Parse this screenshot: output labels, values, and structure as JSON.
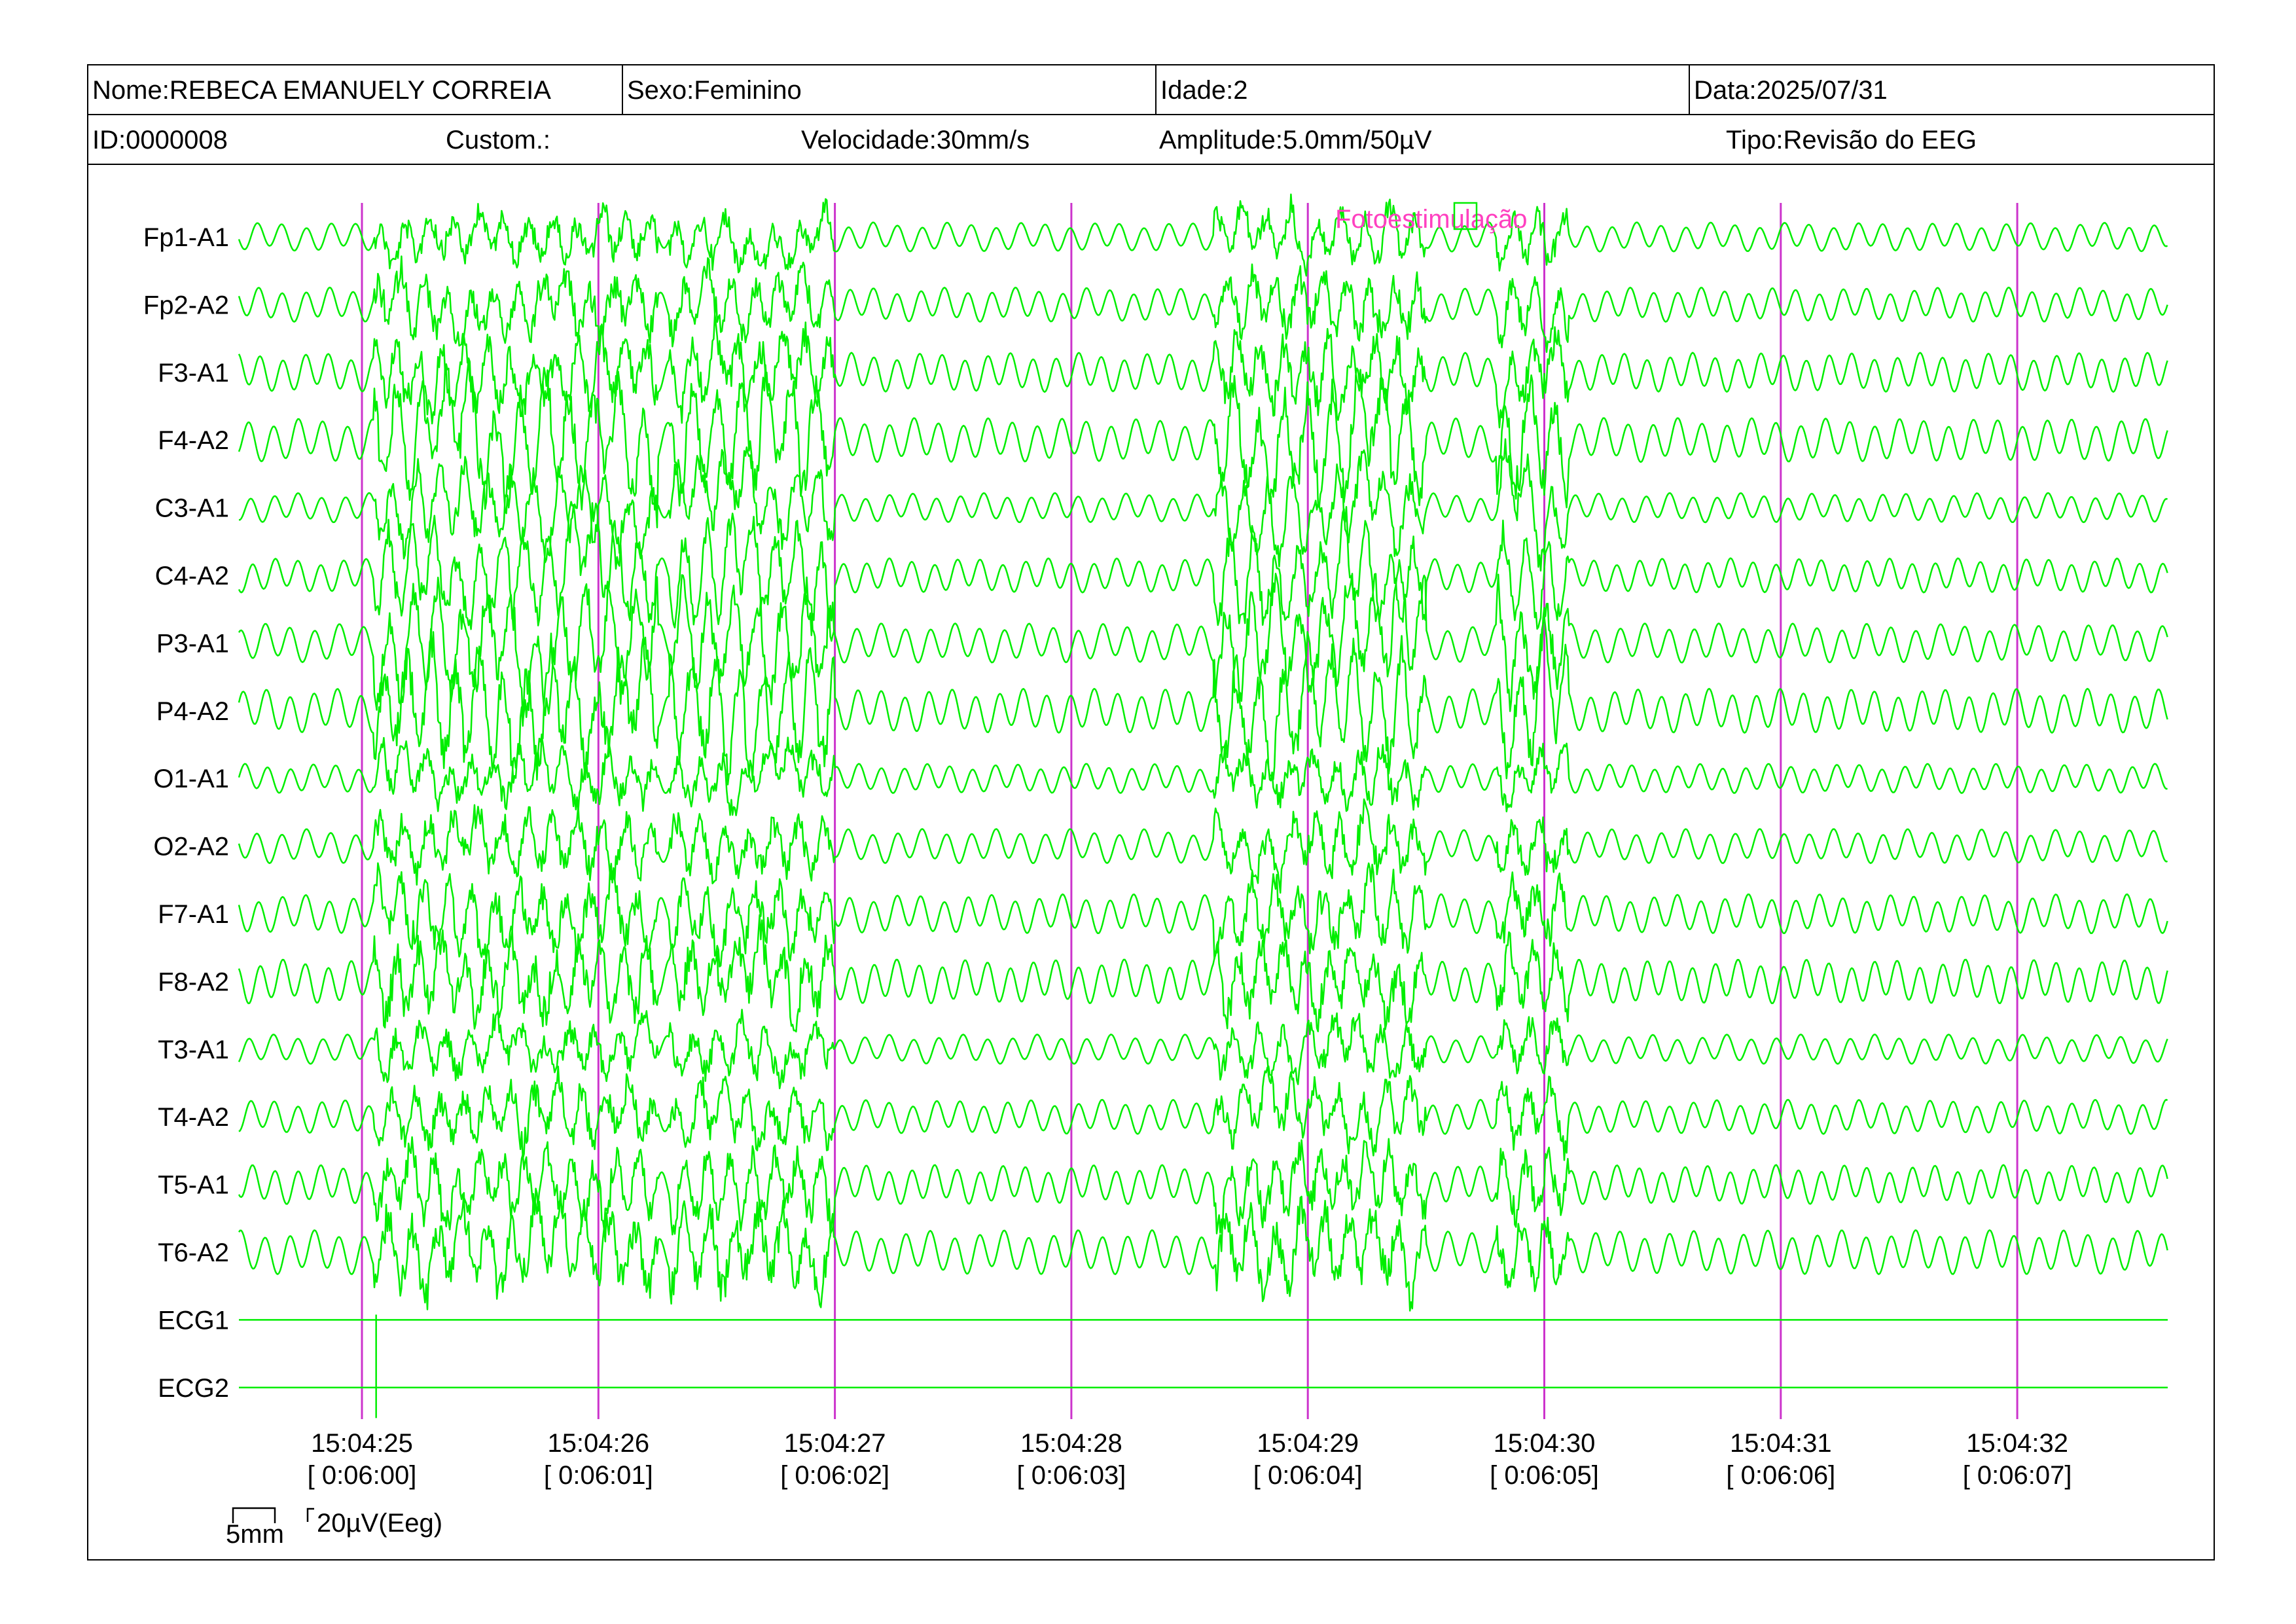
{
  "header": {
    "name": "Nome:REBECA EMANUELY CORREIA",
    "sex": "Sexo:Feminino",
    "age": "Idade:2",
    "date": "Data:2025/07/31",
    "id": "ID:0000008",
    "custom": "Custom.:",
    "speed": "Velocidade:30mm/s",
    "amplitude": "Amplitude:5.0mm/50µV",
    "type": "Tipo:Revisão do EEG"
  },
  "event": {
    "label": "Fotoestimulação"
  },
  "scale": {
    "time": "5mm",
    "amplitude": "20µV(Eeg)"
  },
  "colors": {
    "trace": "#00ee00",
    "marker": "#cc33cc",
    "event": "#ff40c0"
  },
  "chart_data": {
    "type": "line",
    "channels": [
      "Fp1-A1",
      "Fp2-A2",
      "F3-A1",
      "F4-A2",
      "C3-A1",
      "C4-A2",
      "P3-A1",
      "P4-A2",
      "O1-A1",
      "O2-A2",
      "F7-A1",
      "F8-A2",
      "T3-A1",
      "T4-A2",
      "T5-A1",
      "T6-A2",
      "ECG1",
      "ECG2"
    ],
    "time_marks": [
      {
        "clock": "15:04:25",
        "elapsed": "[ 0:06:00]"
      },
      {
        "clock": "15:04:26",
        "elapsed": "[ 0:06:01]"
      },
      {
        "clock": "15:04:27",
        "elapsed": "[ 0:06:02]"
      },
      {
        "clock": "15:04:28",
        "elapsed": "[ 0:06:03]"
      },
      {
        "clock": "15:04:29",
        "elapsed": "[ 0:06:04]"
      },
      {
        "clock": "15:04:30",
        "elapsed": "[ 0:06:05]"
      },
      {
        "clock": "15:04:31",
        "elapsed": "[ 0:06:06]"
      },
      {
        "clock": "15:04:32",
        "elapsed": "[ 0:06:07]"
      }
    ],
    "x_range_seconds": [
      -0.52,
      7.65
    ],
    "speed_mm_per_s": 30,
    "amplitude_mm_per_50uV": 5.0,
    "artifact_intervals": [
      [
        0.05,
        1.25
      ],
      [
        1.3,
        2.0
      ],
      [
        3.6,
        4.5
      ],
      [
        4.8,
        5.1
      ]
    ]
  }
}
